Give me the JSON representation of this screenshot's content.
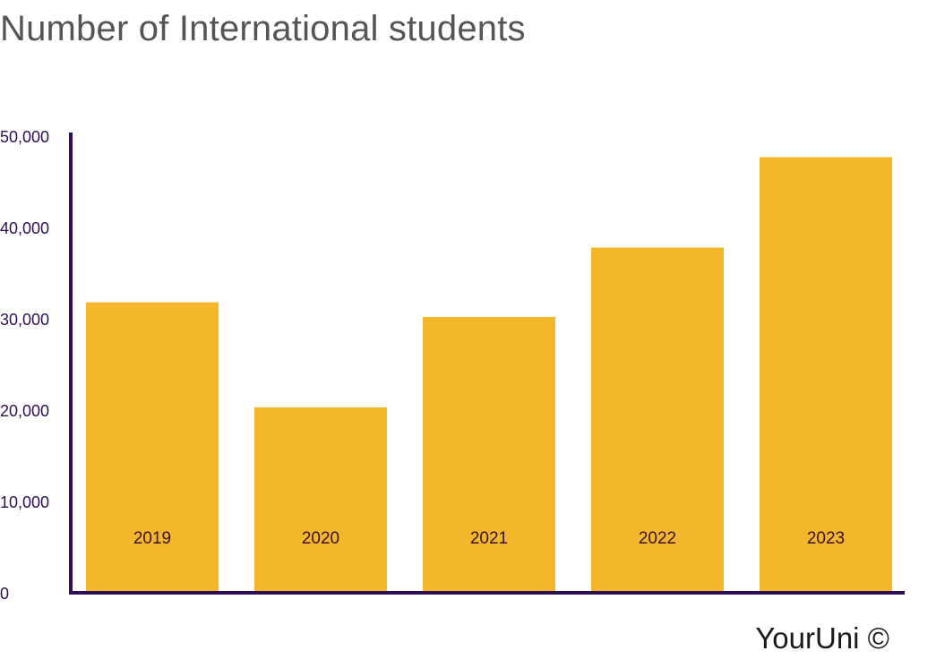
{
  "chart_data": {
    "type": "bar",
    "title": "Number of International students",
    "xlabel": "",
    "ylabel": "",
    "categories": [
      "2019",
      "2020",
      "2021",
      "2022",
      "2023"
    ],
    "values": [
      31800,
      20300,
      30200,
      37800,
      47700
    ],
    "ylim": [
      0,
      50000
    ],
    "yticks": [
      0,
      10000,
      20000,
      30000,
      40000,
      50000
    ],
    "ytick_labels": [
      "0",
      "10,000",
      "20,000",
      "30,000",
      "40,000",
      "50,000"
    ],
    "grid": false,
    "legend": "none",
    "category_labels_inside_bars": true
  },
  "footer": {
    "credit": "YourUni ©"
  },
  "colors": {
    "bar": "#F3B72B",
    "axis": "#2E0F55",
    "tick_label": "#2E0F55",
    "bar_label": "#3A1030",
    "title": "#555555"
  }
}
